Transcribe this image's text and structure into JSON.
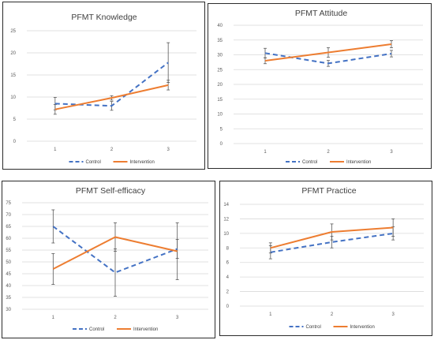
{
  "chart_data": [
    {
      "type": "line",
      "title": "PFMT Knowledge",
      "categories": [
        "1",
        "2",
        "3"
      ],
      "ylim": [
        0,
        25
      ],
      "yticks": [
        0,
        5,
        10,
        15,
        20,
        25
      ],
      "grid": true,
      "legend": "bottom",
      "series": [
        {
          "name": "Control",
          "values": [
            8.5,
            8.0,
            17.8
          ],
          "errors": [
            1.4,
            1.0,
            4.5
          ],
          "color": "#4472C4",
          "style": "dashed"
        },
        {
          "name": "Intervention",
          "values": [
            7.2,
            9.8,
            12.7
          ],
          "errors": [
            1.1,
            0.5,
            1.1
          ],
          "color": "#ED7D31",
          "style": "solid"
        }
      ]
    },
    {
      "type": "line",
      "title": "PFMT Attitude",
      "categories": [
        "1",
        "2",
        "3"
      ],
      "ylim": [
        0,
        40
      ],
      "yticks": [
        0,
        5,
        10,
        15,
        20,
        25,
        30,
        35,
        40
      ],
      "grid": true,
      "legend": "bottom",
      "series": [
        {
          "name": "Control",
          "values": [
            30.6,
            27.1,
            30.4
          ],
          "errors": [
            1.6,
            1.0,
            1.1
          ],
          "color": "#4472C4",
          "style": "dashed"
        },
        {
          "name": "Intervention",
          "values": [
            28.0,
            30.8,
            33.6
          ],
          "errors": [
            1.0,
            1.6,
            1.2
          ],
          "color": "#ED7D31",
          "style": "solid"
        }
      ]
    },
    {
      "type": "line",
      "title": "PFMT Self-efficacy",
      "categories": [
        "1",
        "2",
        "3"
      ],
      "ylim": [
        30,
        75
      ],
      "yticks": [
        30,
        35,
        40,
        45,
        50,
        55,
        60,
        65,
        70,
        75
      ],
      "grid": true,
      "legend": "bottom",
      "series": [
        {
          "name": "Control",
          "values": [
            65.0,
            45.5,
            55.5
          ],
          "errors": [
            7.0,
            10.0,
            4.0
          ],
          "color": "#4472C4",
          "style": "dashed"
        },
        {
          "name": "Intervention",
          "values": [
            47.0,
            60.5,
            54.5
          ],
          "errors": [
            6.5,
            6.0,
            12.0
          ],
          "color": "#ED7D31",
          "style": "solid"
        }
      ]
    },
    {
      "type": "line",
      "title": "PFMT Practice",
      "categories": [
        "1",
        "2",
        "3"
      ],
      "ylim": [
        0,
        14
      ],
      "yticks": [
        0,
        2,
        4,
        6,
        8,
        10,
        12,
        14
      ],
      "grid": true,
      "legend": "bottom",
      "series": [
        {
          "name": "Control",
          "values": [
            7.4,
            8.8,
            10.0
          ],
          "errors": [
            0.9,
            0.8,
            0.9
          ],
          "color": "#4472C4",
          "style": "dashed"
        },
        {
          "name": "Intervention",
          "values": [
            8.0,
            10.2,
            10.8
          ],
          "errors": [
            0.7,
            1.1,
            1.2
          ],
          "color": "#ED7D31",
          "style": "solid"
        }
      ]
    }
  ]
}
